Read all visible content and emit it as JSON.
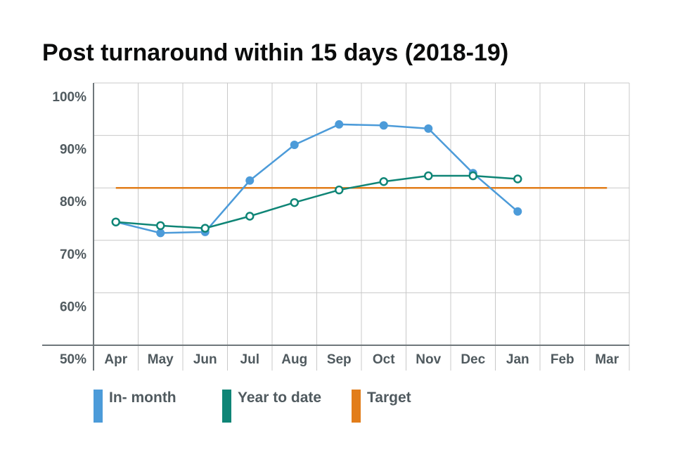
{
  "chart_data": {
    "type": "line",
    "title": "Post turnaround within 15 days (2018-19)",
    "categories": [
      "Apr",
      "May",
      "Jun",
      "Jul",
      "Aug",
      "Sep",
      "Oct",
      "Nov",
      "Dec",
      "Jan",
      "Feb",
      "Mar"
    ],
    "ylim": [
      50,
      100
    ],
    "yticks": [
      "50%",
      "60%",
      "70%",
      "80%",
      "90%",
      "100%"
    ],
    "ytick_values": [
      50,
      60,
      70,
      80,
      90,
      100
    ],
    "grid": true,
    "legend_position": "bottom",
    "series": [
      {
        "name": "In- month",
        "color": "#4c9bd9",
        "marker": "filled",
        "values": [
          73.5,
          71.4,
          71.6,
          81.4,
          88.2,
          92.1,
          91.9,
          91.3,
          82.8,
          75.5,
          null,
          null
        ]
      },
      {
        "name": "Year to date",
        "color": "#0f8576",
        "marker": "hollow",
        "values": [
          73.5,
          72.8,
          72.3,
          74.6,
          77.2,
          79.6,
          81.2,
          82.3,
          82.3,
          81.7,
          null,
          null
        ]
      },
      {
        "name": "Target",
        "color": "#e27d1a",
        "marker": "none",
        "values": [
          80,
          80,
          80,
          80,
          80,
          80,
          80,
          80,
          80,
          80,
          80,
          80
        ]
      }
    ]
  }
}
